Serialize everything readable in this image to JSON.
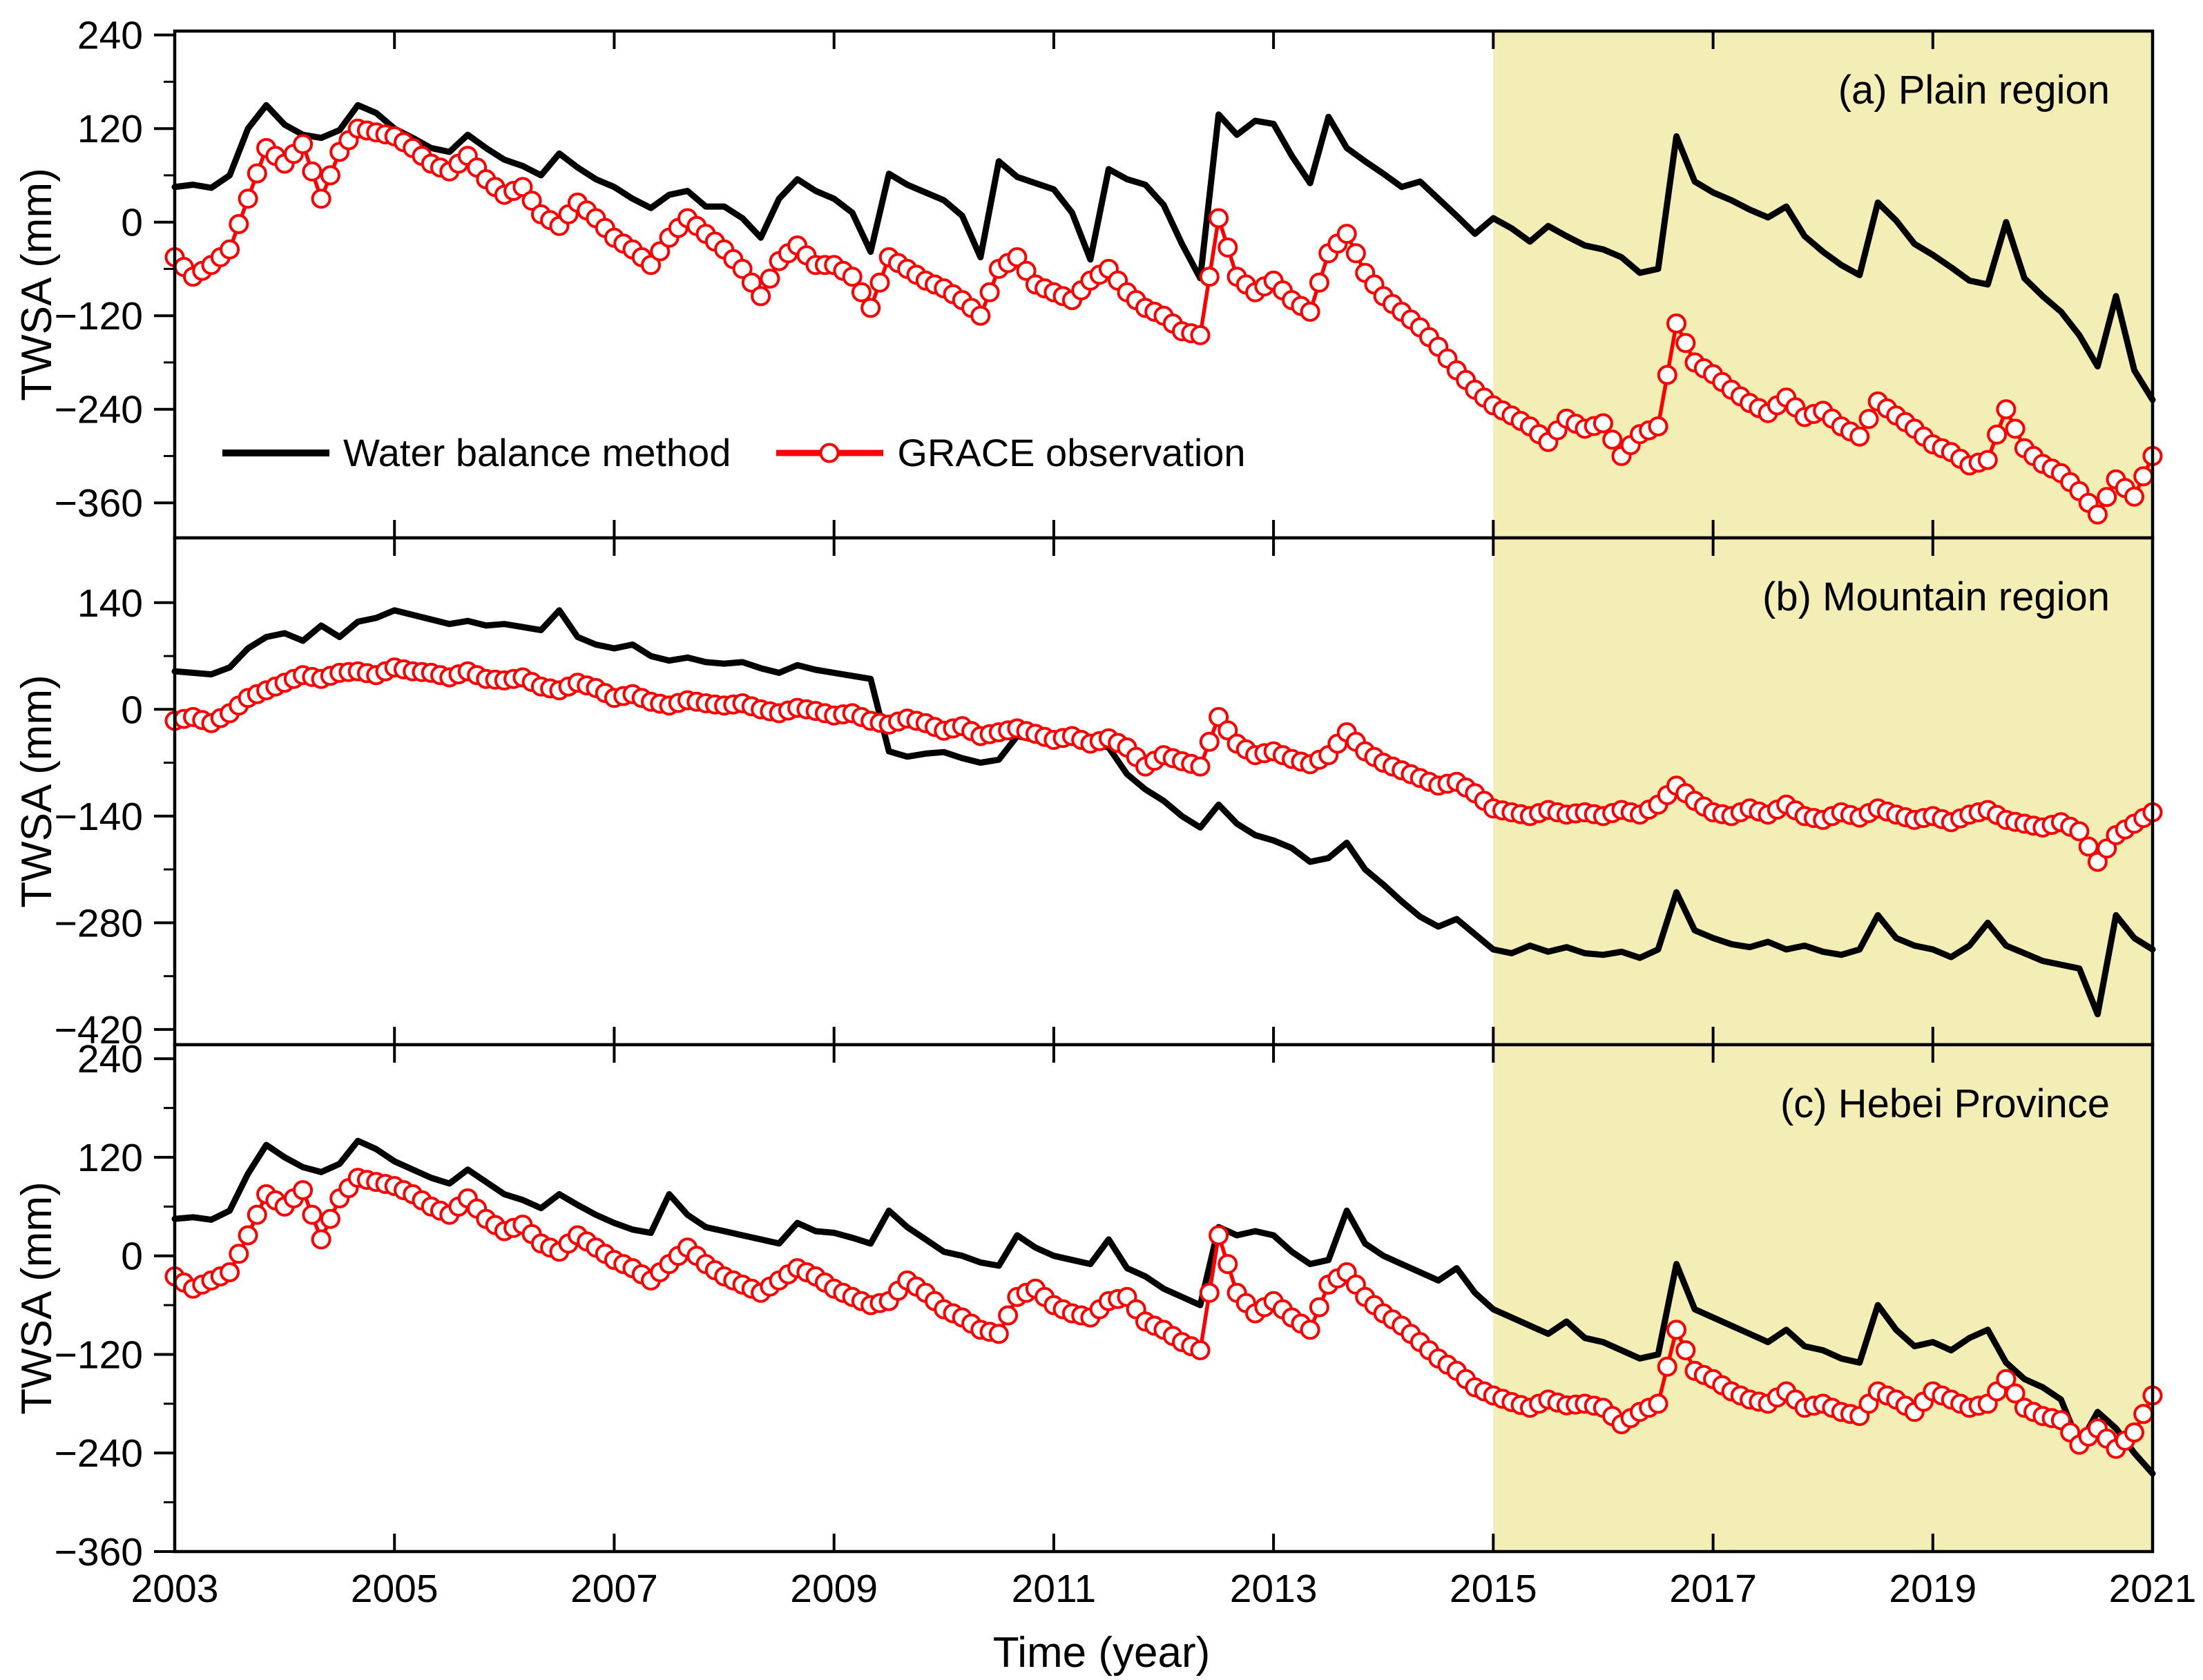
{
  "figure": {
    "xlabel": "Time (year)",
    "x_ticks": [
      2003,
      2005,
      2007,
      2009,
      2011,
      2013,
      2015,
      2017,
      2019,
      2021
    ],
    "highlight_color": "#f3eeb6",
    "series_colors": {
      "water_balance": "#000000",
      "grace": "#ff0000"
    },
    "legend": [
      {
        "label": "Water balance method",
        "color": "#000000",
        "marker": "none"
      },
      {
        "label": "GRACE observation",
        "color": "#ff0000",
        "marker": "circle"
      }
    ]
  },
  "chart_data": [
    {
      "id": "a",
      "type": "line",
      "title": "(a) Plain region",
      "ylabel": "TWSA (mm)",
      "xlim": [
        2003,
        2021
      ],
      "ylim": [
        -405,
        245
      ],
      "yticks": [
        240,
        120,
        0,
        -120,
        -240,
        -360
      ],
      "x_start": 2003,
      "x_end": 2021,
      "highlight": {
        "from": 2015,
        "to": 2021
      },
      "series": [
        {
          "slug": "water-balance",
          "name": "Water balance method",
          "color": "#000000",
          "marker": "none",
          "line_width": 9,
          "values": [
            45,
            48,
            44,
            60,
            120,
            150,
            125,
            112,
            108,
            118,
            150,
            140,
            120,
            108,
            95,
            90,
            112,
            95,
            80,
            72,
            60,
            88,
            70,
            55,
            45,
            30,
            18,
            35,
            40,
            20,
            20,
            5,
            -20,
            30,
            55,
            40,
            30,
            12,
            -38,
            62,
            48,
            38,
            28,
            8,
            -45,
            78,
            58,
            50,
            42,
            12,
            -48,
            68,
            55,
            48,
            22,
            -28,
            -72,
            138,
            112,
            130,
            126,
            85,
            50,
            135,
            95,
            78,
            62,
            45,
            52,
            30,
            8,
            -15,
            5,
            -8,
            -25,
            -5,
            -18,
            -30,
            -35,
            -45,
            -65,
            -60,
            110,
            52,
            38,
            28,
            16,
            6,
            20,
            -18,
            -38,
            -55,
            -68,
            25,
            2,
            -28,
            -42,
            -58,
            -75,
            -80,
            0,
            -72,
            -95,
            -115,
            -145,
            -185,
            -95,
            -190,
            -228
          ]
        },
        {
          "slug": "grace",
          "name": "GRACE observation",
          "color": "#ff0000",
          "marker": "circle",
          "line_width": 5.5,
          "values": [
            -45,
            -70,
            -55,
            -35,
            30,
            95,
            75,
            100,
            30,
            90,
            120,
            115,
            110,
            95,
            75,
            65,
            85,
            55,
            35,
            45,
            10,
            -5,
            25,
            5,
            -20,
            -35,
            -55,
            -20,
            5,
            -15,
            -35,
            -60,
            -95,
            -50,
            -30,
            -55,
            -55,
            -70,
            -110,
            -45,
            -60,
            -75,
            -85,
            -100,
            -120,
            -60,
            -45,
            -80,
            -90,
            -100,
            -75,
            -60,
            -90,
            -110,
            -120,
            -140,
            -145,
            5,
            -70,
            -90,
            -75,
            -100,
            -115,
            -40,
            -15,
            -65,
            -95,
            -115,
            -135,
            -160,
            -190,
            -215,
            -235,
            -248,
            -262,
            -282,
            -252,
            -265,
            -258,
            -300,
            -272,
            -262,
            -130,
            -180,
            -195,
            -215,
            -232,
            -245,
            -225,
            -250,
            -242,
            -262,
            -275,
            -230,
            -248,
            -265,
            -285,
            -295,
            -312,
            -305,
            -240,
            -290,
            -310,
            -322,
            -345,
            -375,
            -330,
            -352,
            -300
          ]
        }
      ]
    },
    {
      "id": "b",
      "type": "line",
      "title": "(b) Mountain region",
      "ylabel": "TWSA (mm)",
      "xlim": [
        2003,
        2021
      ],
      "ylim": [
        -440,
        225
      ],
      "yticks": [
        140,
        0,
        -140,
        -280,
        -420
      ],
      "x_start": 2003,
      "x_end": 2021,
      "highlight": {
        "from": 2015,
        "to": 2021
      },
      "series": [
        {
          "slug": "water-balance",
          "name": "Water balance method",
          "color": "#000000",
          "marker": "none",
          "line_width": 9,
          "values": [
            50,
            48,
            46,
            55,
            80,
            95,
            100,
            90,
            110,
            95,
            115,
            120,
            130,
            124,
            118,
            112,
            116,
            110,
            112,
            108,
            104,
            130,
            95,
            85,
            80,
            85,
            70,
            64,
            68,
            62,
            60,
            62,
            54,
            48,
            58,
            52,
            48,
            44,
            40,
            -55,
            -62,
            -58,
            -56,
            -64,
            -70,
            -66,
            -35,
            -40,
            -38,
            -42,
            -45,
            -50,
            -85,
            -105,
            -120,
            -140,
            -155,
            -125,
            -150,
            -165,
            -172,
            -182,
            -200,
            -195,
            -175,
            -210,
            -230,
            -252,
            -272,
            -285,
            -275,
            -295,
            -315,
            -320,
            -310,
            -318,
            -312,
            -320,
            -322,
            -318,
            -326,
            -315,
            -240,
            -290,
            -300,
            -308,
            -312,
            -305,
            -315,
            -310,
            -318,
            -322,
            -315,
            -270,
            -300,
            -310,
            -315,
            -325,
            -310,
            -280,
            -310,
            -320,
            -330,
            -335,
            -340,
            -400,
            -270,
            -300,
            -315
          ]
        },
        {
          "slug": "grace",
          "name": "GRACE observation",
          "color": "#ff0000",
          "marker": "circle",
          "line_width": 5.5,
          "values": [
            -15,
            -10,
            -18,
            -5,
            15,
            25,
            35,
            45,
            40,
            48,
            50,
            45,
            55,
            50,
            48,
            42,
            50,
            40,
            38,
            42,
            30,
            25,
            35,
            28,
            15,
            20,
            10,
            5,
            12,
            8,
            5,
            8,
            0,
            -5,
            2,
            -2,
            -8,
            -5,
            -15,
            -20,
            -12,
            -18,
            -28,
            -22,
            -35,
            -30,
            -25,
            -32,
            -40,
            -35,
            -45,
            -38,
            -50,
            -75,
            -60,
            -68,
            -75,
            -10,
            -45,
            -60,
            -55,
            -65,
            -72,
            -60,
            -30,
            -55,
            -70,
            -80,
            -90,
            -100,
            -95,
            -110,
            -130,
            -135,
            -140,
            -132,
            -138,
            -135,
            -140,
            -132,
            -138,
            -125,
            -100,
            -120,
            -135,
            -140,
            -130,
            -138,
            -125,
            -140,
            -145,
            -135,
            -142,
            -130,
            -138,
            -145,
            -140,
            -148,
            -138,
            -132,
            -145,
            -150,
            -155,
            -148,
            -160,
            -200,
            -165,
            -150,
            -135
          ]
        }
      ]
    },
    {
      "id": "c",
      "type": "line",
      "title": "(c) Hebei Province",
      "ylabel": "TWSA (mm)",
      "xlim": [
        2003,
        2021
      ],
      "ylim": [
        -360,
        257
      ],
      "yticks": [
        240,
        120,
        0,
        -120,
        -240,
        -360
      ],
      "x_start": 2003,
      "x_end": 2021,
      "highlight": {
        "from": 2015,
        "to": 2021
      },
      "series": [
        {
          "slug": "water-balance",
          "name": "Water balance method",
          "color": "#000000",
          "marker": "none",
          "line_width": 9,
          "values": [
            45,
            47,
            44,
            55,
            100,
            135,
            120,
            108,
            102,
            112,
            140,
            130,
            115,
            105,
            95,
            88,
            105,
            90,
            75,
            68,
            58,
            75,
            62,
            50,
            40,
            32,
            28,
            75,
            50,
            35,
            30,
            25,
            20,
            15,
            40,
            30,
            28,
            22,
            15,
            55,
            35,
            20,
            5,
            0,
            -8,
            -12,
            25,
            10,
            0,
            -5,
            -10,
            20,
            -15,
            -25,
            -40,
            -50,
            -60,
            35,
            25,
            30,
            25,
            5,
            -10,
            -5,
            55,
            15,
            0,
            -10,
            -20,
            -30,
            -15,
            -45,
            -65,
            -75,
            -85,
            -95,
            -80,
            -100,
            -105,
            -115,
            -125,
            -120,
            -10,
            -65,
            -75,
            -85,
            -95,
            -105,
            -90,
            -110,
            -115,
            -125,
            -130,
            -60,
            -90,
            -110,
            -105,
            -115,
            -100,
            -90,
            -130,
            -150,
            -160,
            -175,
            -230,
            -190,
            -210,
            -240,
            -265
          ]
        },
        {
          "slug": "grace",
          "name": "GRACE observation",
          "color": "#ff0000",
          "marker": "circle",
          "line_width": 5.5,
          "values": [
            -25,
            -40,
            -30,
            -20,
            25,
            75,
            60,
            80,
            20,
            70,
            95,
            90,
            85,
            75,
            60,
            50,
            70,
            45,
            30,
            38,
            15,
            5,
            25,
            10,
            -5,
            -15,
            -30,
            -10,
            10,
            -10,
            -25,
            -35,
            -45,
            -30,
            -15,
            -25,
            -40,
            -50,
            -60,
            -55,
            -30,
            -45,
            -65,
            -75,
            -90,
            -95,
            -50,
            -40,
            -60,
            -70,
            -75,
            -55,
            -50,
            -80,
            -90,
            -105,
            -115,
            25,
            -45,
            -70,
            -55,
            -75,
            -90,
            -35,
            -20,
            -50,
            -70,
            -85,
            -105,
            -125,
            -140,
            -160,
            -170,
            -178,
            -185,
            -175,
            -182,
            -180,
            -185,
            -205,
            -190,
            -180,
            -90,
            -140,
            -150,
            -165,
            -175,
            -180,
            -165,
            -185,
            -180,
            -190,
            -195,
            -165,
            -175,
            -190,
            -165,
            -175,
            -185,
            -180,
            -150,
            -185,
            -195,
            -200,
            -230,
            -210,
            -235,
            -215,
            -170
          ]
        }
      ]
    }
  ]
}
